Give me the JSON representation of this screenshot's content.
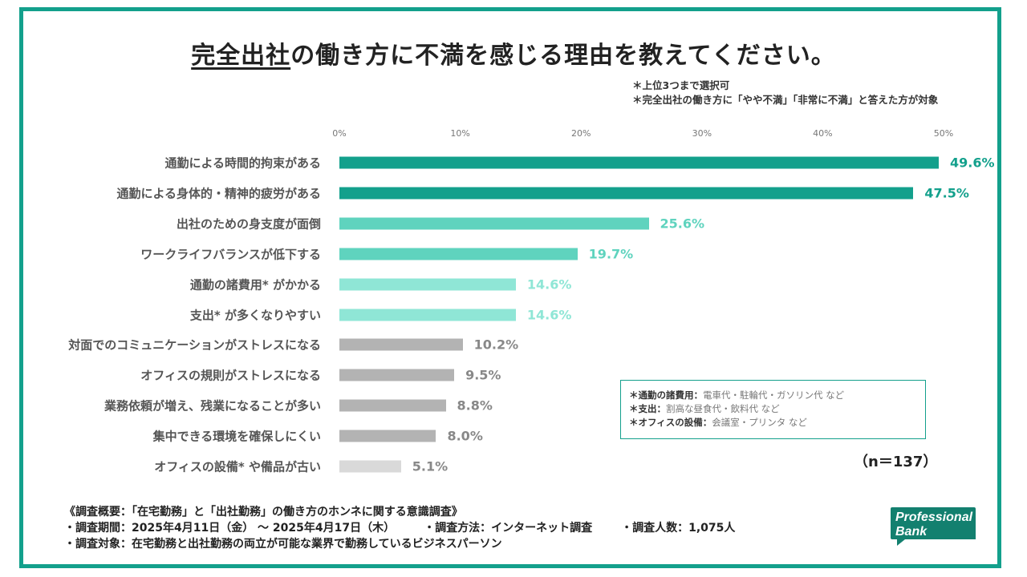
{
  "title": {
    "underlined": "完全出社",
    "rest": "の働き方に不満を感じる理由を教えてください。"
  },
  "notes": [
    "＊上位3つまで選択可",
    "＊完全出社の働き方に「やや不満」「非常に不満」と答えた方が対象"
  ],
  "chart_data": {
    "type": "bar",
    "orientation": "horizontal",
    "title": "完全出社の働き方に不満を感じる理由を教えてください。",
    "xlim": [
      0,
      50
    ],
    "ticks": [
      "0%",
      "10%",
      "20%",
      "30%",
      "40%",
      "50%"
    ],
    "unit": "%",
    "categories": [
      "通勤による時間的拘束がある",
      "通勤による身体的・精神的疲労がある",
      "出社のための身支度が面倒",
      "ワークライフバランスが低下する",
      "通勤の諸費用* がかかる",
      "支出* が多くなりやすい",
      "対面でのコミュニケーションがストレスになる",
      "オフィスの規則がストレスになる",
      "業務依頼が増え、残業になることが多い",
      "集中できる環境を確保しにくい",
      "オフィスの設備* や備品が古い"
    ],
    "values": [
      49.6,
      47.5,
      25.6,
      19.7,
      14.6,
      14.6,
      10.2,
      9.5,
      8.8,
      8.0,
      5.1
    ],
    "labels": [
      "49.6%",
      "47.5%",
      "25.6%",
      "19.7%",
      "14.6%",
      "14.6%",
      "10.2%",
      "9.5%",
      "8.8%",
      "8.0%",
      "5.1%"
    ]
  },
  "colors": {
    "bars": [
      "#13a08c",
      "#13a08c",
      "#5fd3be",
      "#5fd3be",
      "#8fe6d6",
      "#8fe6d6",
      "#b3b3b3",
      "#b3b3b3",
      "#b3b3b3",
      "#b3b3b3",
      "#d9d9d9"
    ],
    "labels": [
      "#13a08c",
      "#13a08c",
      "#5fd3be",
      "#5fd3be",
      "#8fe6d6",
      "#8fe6d6",
      "#888888",
      "#888888",
      "#888888",
      "#888888",
      "#888888"
    ]
  },
  "definitions": [
    {
      "term": "＊通勤の諸費用：",
      "desc": "電車代・駐輪代・ガソリン代 など"
    },
    {
      "term": "＊支出：",
      "desc": "割高な昼食代・飲料代 など"
    },
    {
      "term": "＊オフィスの設備：",
      "desc": "会議室・プリンタ など"
    }
  ],
  "sample_size": "（n＝137）",
  "survey": {
    "heading": "《調査概要：「在宅勤務」と「出社勤務」の働き方のホンネに関する意識調査》",
    "period": "・調査期間：2025年4月11日（金） ～ 2025年4月17日（木）",
    "method": "・調査方法：インターネット調査",
    "respondents": "・調査人数：1,075人",
    "target": "・調査対象：在宅勤務と出社勤務の両立が可能な業界で勤務しているビジネスパーソン"
  },
  "logo": {
    "line1": "Professional",
    "line2": "Bank"
  }
}
